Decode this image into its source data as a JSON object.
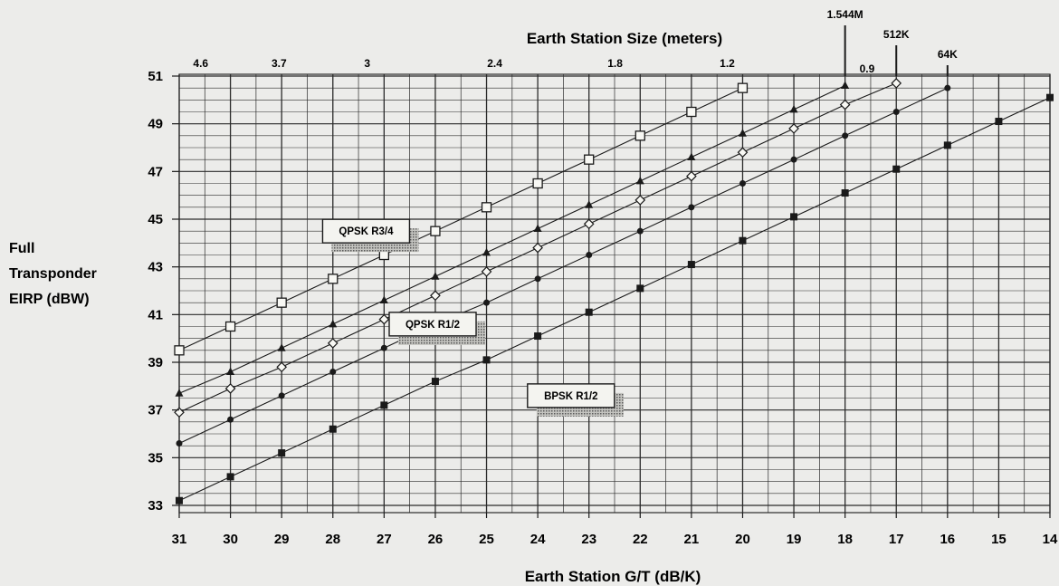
{
  "chart_data": {
    "type": "line",
    "xlabel": "Earth Station G/T (dB/K)",
    "ylabel_lines": [
      "Full",
      "Transponder",
      "EIRP (dBW)"
    ],
    "top_axis_title": "Earth Station Size (meters)",
    "x_ticks": [
      31,
      30,
      29,
      28,
      27,
      26,
      25,
      24,
      23,
      22,
      21,
      20,
      19,
      18,
      17,
      16,
      15,
      14
    ],
    "y_ticks": [
      33,
      35,
      37,
      39,
      41,
      43,
      45,
      47,
      49,
      51
    ],
    "xlim": [
      31,
      14
    ],
    "ylim": [
      32.7,
      51.2
    ],
    "grid": true,
    "top_ticks": [
      {
        "label": "4.6",
        "x": 30.58
      },
      {
        "label": "3.7",
        "x": 29.05
      },
      {
        "label": "3",
        "x": 27.33
      },
      {
        "label": "2.4",
        "x": 24.84
      },
      {
        "label": "1.8",
        "x": 22.49
      },
      {
        "label": "1.2",
        "x": 20.3
      },
      {
        "label": "0.9",
        "x": 17.57
      }
    ],
    "rate_markers": [
      {
        "label": "1.544M",
        "x": 18
      },
      {
        "label": "512K",
        "x": 17
      },
      {
        "label": "64K",
        "x": 16
      }
    ],
    "series": [
      {
        "name": "QPSK R3/4",
        "marker": "open-square",
        "x": [
          31,
          30,
          29,
          28,
          27,
          26,
          25,
          24,
          23,
          22,
          21,
          20
        ],
        "y": [
          39.5,
          40.5,
          41.5,
          42.5,
          43.5,
          44.5,
          45.5,
          46.5,
          47.5,
          48.5,
          49.5,
          50.5
        ]
      },
      {
        "name": "",
        "marker": "triangle",
        "x": [
          31,
          30,
          29,
          28,
          27,
          26,
          25,
          24,
          23,
          22,
          21,
          20,
          19,
          18
        ],
        "y": [
          37.7,
          38.6,
          39.6,
          40.6,
          41.6,
          42.6,
          43.6,
          44.6,
          45.6,
          46.6,
          47.6,
          48.6,
          49.6,
          50.6
        ]
      },
      {
        "name": "QPSK R1/2",
        "marker": "open-diamond",
        "x": [
          31,
          30,
          29,
          28,
          27,
          26,
          25,
          24,
          23,
          22,
          21,
          20,
          19,
          18,
          17
        ],
        "y": [
          36.9,
          37.9,
          38.8,
          39.8,
          40.8,
          41.8,
          42.8,
          43.8,
          44.8,
          45.8,
          46.8,
          47.8,
          48.8,
          49.8,
          50.7
        ]
      },
      {
        "name": "",
        "marker": "filled-circle",
        "x": [
          31,
          30,
          29,
          28,
          27,
          26,
          25,
          24,
          23,
          22,
          21,
          20,
          19,
          18,
          17,
          16
        ],
        "y": [
          35.6,
          36.6,
          37.6,
          38.6,
          39.6,
          40.6,
          41.5,
          42.5,
          43.5,
          44.5,
          45.5,
          46.5,
          47.5,
          48.5,
          49.5,
          50.5
        ]
      },
      {
        "name": "BPSK R1/2",
        "marker": "filled-square",
        "x": [
          31,
          30,
          29,
          28,
          27,
          26,
          25,
          24,
          23,
          22,
          21,
          20,
          19,
          18,
          17,
          16,
          15,
          14
        ],
        "y": [
          33.2,
          34.2,
          35.2,
          36.2,
          37.2,
          38.2,
          39.1,
          40.1,
          41.1,
          42.1,
          43.1,
          44.1,
          45.1,
          46.1,
          47.1,
          48.1,
          49.1,
          50.1
        ]
      }
    ],
    "annotations": [
      {
        "text": "QPSK R3/4",
        "anchor_x": 28.2,
        "anchor_y": 44.5
      },
      {
        "text": "QPSK R1/2",
        "anchor_x": 26.9,
        "anchor_y": 40.6
      },
      {
        "text": "BPSK R1/2",
        "anchor_x": 24.2,
        "anchor_y": 37.6
      }
    ],
    "colors": {
      "ink": "#1a1a1a",
      "grid": "#2b2b2b",
      "background": "#ececea",
      "shadow": "#8a8a8a"
    }
  }
}
